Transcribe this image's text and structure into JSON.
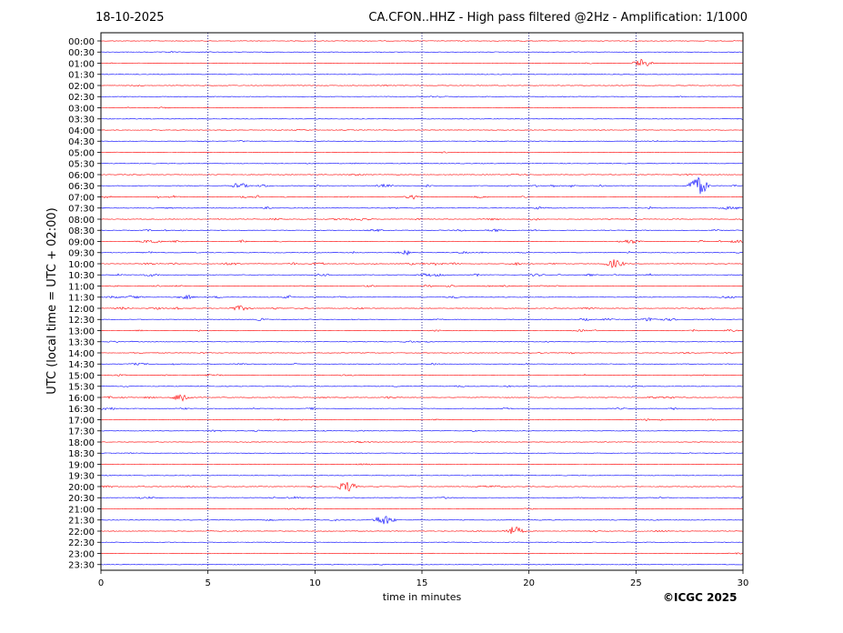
{
  "date": "18-10-2025",
  "title": "CA.CFON..HHZ - High pass filtered @2Hz - Amplification: 1/1000",
  "copyright": "©ICGC 2025",
  "colors": {
    "odd_row": "#ff0000",
    "even_row": "#0000ff",
    "grid": "#000080"
  },
  "chart_data": {
    "type": "line",
    "subtype": "helicorder",
    "xlabel": "time in minutes",
    "ylabel": "UTC (local time = UTC + 02:00)",
    "xlim": [
      0,
      30
    ],
    "xticks": [
      0,
      5,
      10,
      15,
      20,
      25,
      30
    ],
    "vertical_grid_at": [
      5,
      10,
      15,
      20,
      25
    ],
    "rows": [
      "00:00",
      "00:30",
      "01:00",
      "01:30",
      "02:00",
      "02:30",
      "03:00",
      "03:30",
      "04:00",
      "04:30",
      "05:00",
      "05:30",
      "06:00",
      "06:30",
      "07:00",
      "07:30",
      "08:00",
      "08:30",
      "09:00",
      "09:30",
      "10:00",
      "10:30",
      "11:00",
      "11:30",
      "12:00",
      "12:30",
      "13:00",
      "13:30",
      "14:00",
      "14:30",
      "15:00",
      "15:30",
      "16:00",
      "16:30",
      "17:00",
      "17:30",
      "18:00",
      "18:30",
      "19:00",
      "19:30",
      "20:00",
      "20:30",
      "21:00",
      "21:30",
      "22:00",
      "22:30",
      "23:00",
      "23:30"
    ],
    "row_colors": "alternating red / blue",
    "activity_levels": [
      0.02,
      0.08,
      0.05,
      0.03,
      0.05,
      0.08,
      0.05,
      0.02,
      0.02,
      0.1,
      0.05,
      0.08,
      0.15,
      0.45,
      0.4,
      0.3,
      0.4,
      0.3,
      0.35,
      0.4,
      0.4,
      0.4,
      0.35,
      0.4,
      0.35,
      0.3,
      0.25,
      0.2,
      0.2,
      0.25,
      0.3,
      0.2,
      0.3,
      0.25,
      0.2,
      0.15,
      0.02,
      0.05,
      0.03,
      0.08,
      0.2,
      0.25,
      0.1,
      0.12,
      0.15,
      0.02,
      0.02,
      0.02
    ],
    "notable_events": [
      {
        "row": "01:00",
        "minute": 25.3,
        "amplitude": 0.4
      },
      {
        "row": "06:30",
        "minute": 27.9,
        "amplitude": 1.0
      },
      {
        "row": "20:00",
        "minute": 11.5,
        "amplitude": 0.5
      },
      {
        "row": "21:30",
        "minute": 13.2,
        "amplitude": 0.5
      },
      {
        "row": "22:00",
        "minute": 19.3,
        "amplitude": 0.45
      },
      {
        "row": "16:00",
        "minute": 3.8,
        "amplitude": 0.45
      },
      {
        "row": "10:00",
        "minute": 24.0,
        "amplitude": 0.4
      }
    ]
  }
}
